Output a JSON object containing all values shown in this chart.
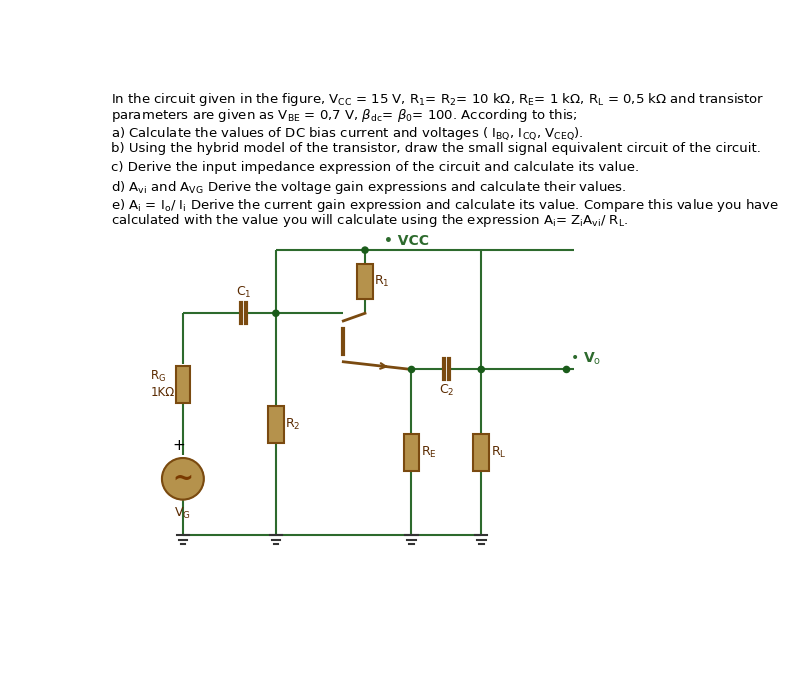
{
  "bg_color": "#ffffff",
  "wire_color": "#2d6a2d",
  "component_color": "#b5924c",
  "component_edge_color": "#7a4a10",
  "dot_color": "#1a5c1a",
  "fig_width": 8.12,
  "fig_height": 6.79,
  "dpi": 100,
  "line1": "In the circuit given in the figure, V$_{\\rm CC}$ = 15 V, R$_1$= R$_2$= 10 kΩ, R$_{\\rm E}$= 1 kΩ, R$_{\\rm L}$ = 0,5 kΩ and transistor",
  "line2": "parameters are given as V$_{\\rm BE}$ = 0,7 V, $\\beta_{\\rm dc}$= $\\beta_0$= 100. According to this;",
  "line_a": "a) Calculate the values of DC bias current and voltages ( I$_{\\rm BQ}$, I$_{\\rm CQ}$, V$_{\\rm CEQ}$).",
  "line_b": "b) Using the hybrid model of the transistor, draw the small signal equivalent circuit of the circuit.",
  "line_c": "c) Derive the input impedance expression of the circuit and calculate its value.",
  "line_d": "d) A$_{\\rm vi}$ and A$_{\\rm VG}$ Derive the voltage gain expressions and calculate their values.",
  "line_e1": "e) A$_{\\rm i}$ = I$_{\\rm o}$/ I$_{\\rm i}$ Derive the current gain expression and calculate its value. Compare this value you have",
  "line_e2": "calculated with the value you will calculate using the expression A$_{\\rm i}$= Z$_{\\rm i}$A$_{\\rm vi}$/ R$_{\\rm L}$."
}
